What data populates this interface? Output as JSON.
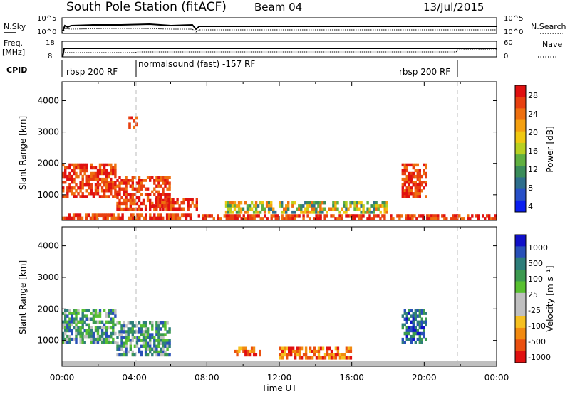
{
  "header": {
    "station": "South Pole Station (fitACF)",
    "beam": "Beam 04",
    "date": "13/Jul/2015"
  },
  "aux": {
    "nsky_label": "N.Sky",
    "nsky_ticks": [
      "10^5",
      "10^0"
    ],
    "nsearch_label": "N.Search",
    "nsearch_ticks": [
      "10^5",
      "10^0"
    ],
    "freq_label": "Freq.",
    "freq_unit": "[MHz]",
    "freq_ticks": [
      "18",
      "8"
    ],
    "nave_label": "Nave",
    "nave_ticks": [
      "60",
      "0"
    ],
    "cpid_label": "CPID",
    "cpid_segments": [
      "rbsp 200 RF",
      "normalsound (fast) -157 RF",
      "rbsp 200 RF"
    ]
  },
  "colors": {
    "power_bar": [
      "#0a1ef0",
      "#2850c8",
      "#2e6e8c",
      "#3a8c5a",
      "#60b040",
      "#b8d020",
      "#f0c810",
      "#f4a010",
      "#ee7010",
      "#e84010",
      "#e01010"
    ],
    "velocity_bar": [
      "#e01010",
      "#ea5010",
      "#f28a10",
      "#f6c020",
      "#c0c0c0",
      "#c0c0c0",
      "#58c030",
      "#3c9a50",
      "#2e7e7a",
      "#2850b8",
      "#1010c8"
    ],
    "ground": "#bfbfbf"
  },
  "chart_data": [
    {
      "type": "heatmap",
      "panel": "power",
      "ylabel": "Slant Range [km]",
      "yticks": [
        "4000",
        "3000",
        "2000",
        "1000"
      ],
      "ylim": [
        180,
        4600
      ],
      "xlim_hours": [
        0,
        24
      ],
      "vertical_markers_hours": [
        4.0,
        22.0
      ],
      "colorbar_label": "Power [dB]",
      "colorbar_ticks": [
        "28",
        "24",
        "20",
        "16",
        "12",
        "8",
        "4"
      ],
      "echo_regions": [
        {
          "t_start": "00:00",
          "t_end": "07:30",
          "range_km": [
            200,
            400
          ],
          "level": "high"
        },
        {
          "t_start": "07:30",
          "t_end": "24:00",
          "range_km": [
            200,
            380
          ],
          "level": "high"
        },
        {
          "t_start": "00:00",
          "t_end": "03:00",
          "range_km": [
            900,
            2000
          ],
          "level": "high"
        },
        {
          "t_start": "03:00",
          "t_end": "06:00",
          "range_km": [
            500,
            1600
          ],
          "level": "high"
        },
        {
          "t_start": "05:00",
          "t_end": "07:30",
          "range_km": [
            500,
            900
          ],
          "level": "high"
        },
        {
          "t_start": "03:40",
          "t_end": "04:10",
          "range_km": [
            3100,
            3500
          ],
          "level": "high"
        },
        {
          "t_start": "09:00",
          "t_end": "18:00",
          "range_km": [
            400,
            800
          ],
          "level": "mixed"
        },
        {
          "t_start": "18:45",
          "t_end": "20:10",
          "range_km": [
            900,
            2000
          ],
          "level": "high"
        }
      ]
    },
    {
      "type": "heatmap",
      "panel": "velocity",
      "ylabel": "Slant Range [km]",
      "yticks": [
        "4000",
        "3000",
        "2000",
        "1000"
      ],
      "ylim": [
        180,
        4600
      ],
      "xlim_hours": [
        0,
        24
      ],
      "xlabel": "Time UT",
      "xticks": [
        "00:00",
        "04:00",
        "08:00",
        "12:00",
        "16:00",
        "20:00",
        "00:00"
      ],
      "vertical_markers_hours": [
        4.0,
        22.0
      ],
      "colorbar_label": "Velocity [m s⁻¹]",
      "colorbar_ticks": [
        "1000",
        "500",
        "100",
        "25",
        "-25",
        "-100",
        "-500",
        "-1000"
      ],
      "echo_regions": [
        {
          "t_start": "00:00",
          "t_end": "24:00",
          "range_km": [
            180,
            350
          ],
          "level": "ground"
        },
        {
          "t_start": "00:00",
          "t_end": "03:00",
          "range_km": [
            900,
            2000
          ],
          "level": "mixed-positive"
        },
        {
          "t_start": "03:00",
          "t_end": "06:00",
          "range_km": [
            500,
            1600
          ],
          "level": "mixed-positive"
        },
        {
          "t_start": "09:30",
          "t_end": "11:00",
          "range_km": [
            500,
            800
          ],
          "level": "negative"
        },
        {
          "t_start": "12:00",
          "t_end": "16:00",
          "range_km": [
            400,
            800
          ],
          "level": "negative"
        },
        {
          "t_start": "18:45",
          "t_end": "20:10",
          "range_km": [
            900,
            2000
          ],
          "level": "positive"
        }
      ]
    }
  ]
}
